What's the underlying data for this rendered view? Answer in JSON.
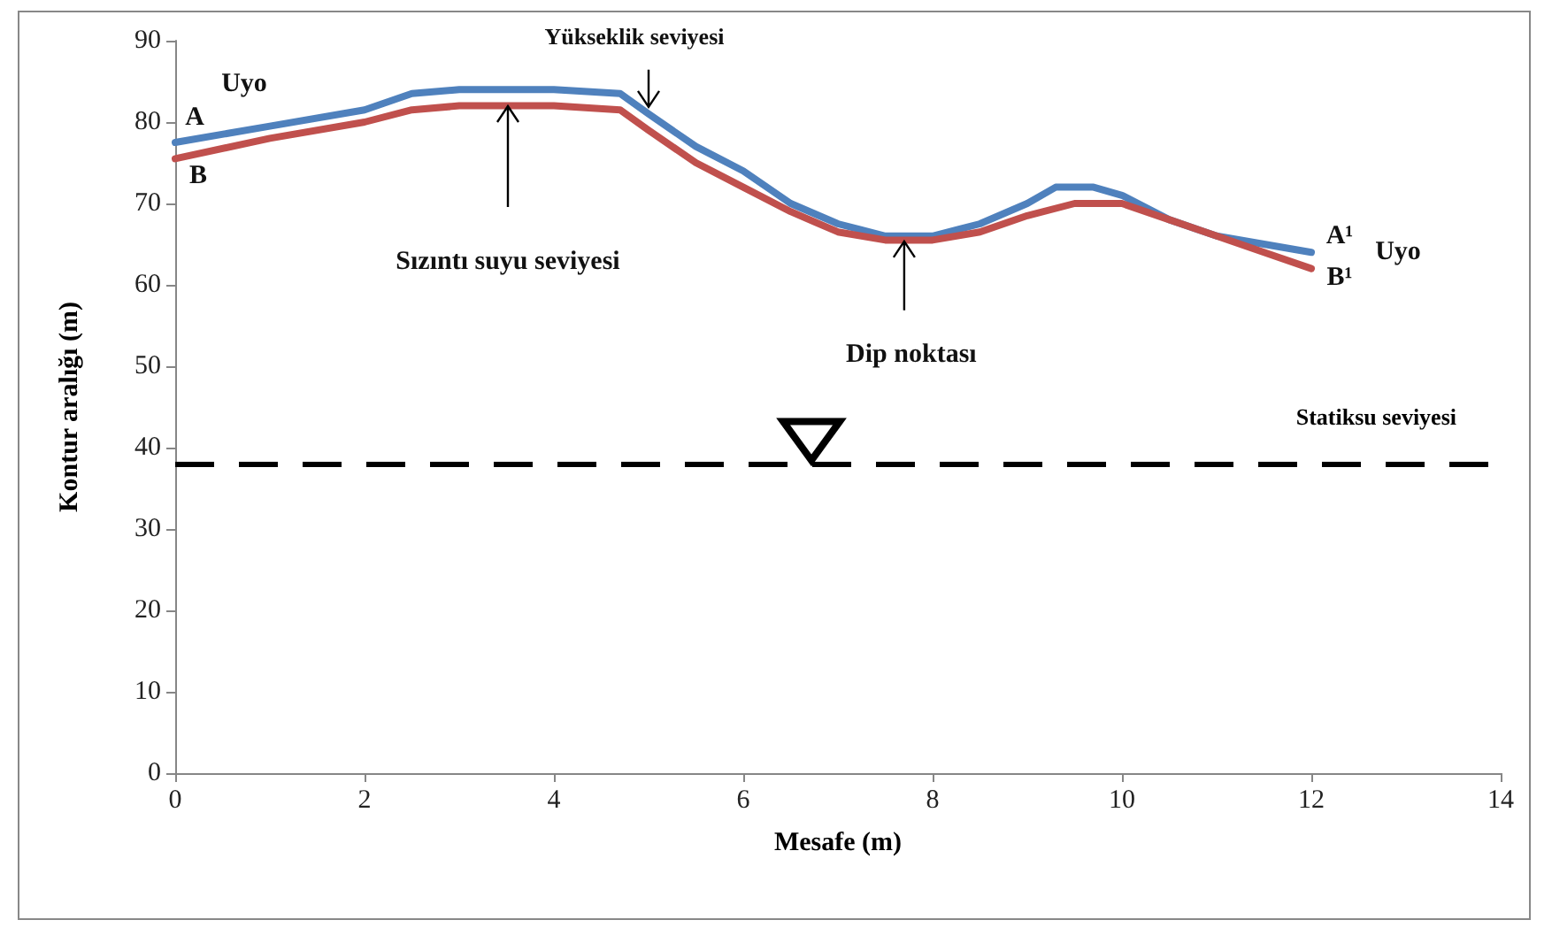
{
  "chart_data": {
    "type": "line",
    "xlabel": "Mesafe (m)",
    "ylabel": "Kontur aralığı (m)",
    "xlim": [
      0,
      14
    ],
    "xticks": [
      0,
      2,
      4,
      6,
      8,
      10,
      12,
      14
    ],
    "ylim": [
      0,
      90
    ],
    "yticks": [
      0,
      10,
      20,
      30,
      40,
      50,
      60,
      70,
      80,
      90
    ],
    "grid": false,
    "marker": "none",
    "line_style": "solid",
    "series": [
      {
        "color": "#4f81bd",
        "x": [
          0,
          1,
          2,
          2.5,
          3,
          4,
          4.7,
          5,
          5.5,
          6,
          6.5,
          7,
          7.5,
          8,
          8.5,
          9,
          9.3,
          9.7,
          10,
          10.5,
          11,
          11.5,
          12
        ],
        "values": [
          77.5,
          79.5,
          81.5,
          83.5,
          84,
          84,
          83.5,
          81,
          77,
          74,
          70,
          67.5,
          66,
          66,
          67.5,
          70,
          72,
          72,
          71,
          68,
          66,
          65,
          64
        ]
      },
      {
        "color": "#c0504d",
        "x": [
          0,
          1,
          2,
          2.5,
          3,
          4,
          4.7,
          5,
          5.5,
          6,
          6.5,
          7,
          7.5,
          8,
          8.5,
          9,
          9.5,
          10,
          10.5,
          11,
          11.5,
          12
        ],
        "values": [
          75.5,
          78,
          80,
          81.5,
          82,
          82,
          81.5,
          79,
          75,
          72,
          69,
          66.5,
          65.5,
          65.5,
          66.5,
          68.5,
          70,
          70,
          68,
          66,
          64,
          62
        ]
      }
    ],
    "ref_lines": [
      {
        "axis": "y",
        "value": 38,
        "label": "Statiksu seviyesi",
        "color": "#000000",
        "line_style": "dashed"
      }
    ],
    "annotations": [
      {
        "text": "Uyo",
        "x": 0,
        "y": 77.5
      },
      {
        "text": "A",
        "x": 0,
        "y": 77.5
      },
      {
        "text": "B",
        "x": 0,
        "y": 75.5
      },
      {
        "text": "Yükseklik seviyesi",
        "x": 5,
        "y": 81
      },
      "Sızıntı suyu seviyesi",
      {
        "text": "Dip noktası",
        "x": 7.7,
        "y": 66
      },
      {
        "text": "A¹",
        "x": 12,
        "y": 64
      },
      {
        "text": "B¹",
        "x": 12,
        "y": 62
      },
      {
        "text": "Uyo",
        "x": 12,
        "y": 64
      }
    ]
  }
}
